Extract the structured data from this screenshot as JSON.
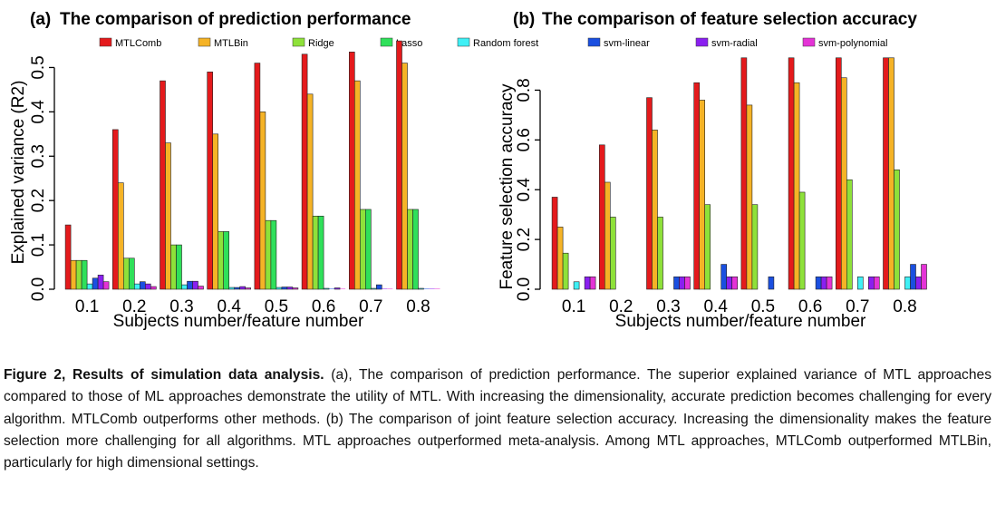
{
  "figure": {
    "caption_title": "Figure 2, Results of simulation data analysis.",
    "caption_body": " (a), The comparison of prediction performance. The superior explained variance of MTL approaches compared to those of ML approaches demonstrate the utility of MTL. With increasing the dimensionality, accurate prediction becomes challenging for every algorithm. MTLComb outperforms other methods. (b) The comparison of joint feature selection accuracy. Increasing the dimensionality makes the feature selection more challenging for all algorithms. MTL approaches outperformed meta-analysis. Among MTL approaches, MTLComb outperformed MTLBin, particularly for high dimensional settings."
  },
  "legend": [
    {
      "name": "MTLComb",
      "color": "#e41a1c"
    },
    {
      "name": "MTLBin",
      "color": "#f5b326"
    },
    {
      "name": "Ridge",
      "color": "#8ee13a"
    },
    {
      "name": "Lasso",
      "color": "#2fe05a"
    },
    {
      "name": "Random forest",
      "color": "#3ff0f5"
    },
    {
      "name": "svm-linear",
      "color": "#1a4fe0"
    },
    {
      "name": "svm-radial",
      "color": "#8a1ff0"
    },
    {
      "name": "svm-polynomial",
      "color": "#e433d6"
    }
  ],
  "chart_data": [
    {
      "type": "bar",
      "panel": "(a)",
      "title": "The comparison of prediction performance",
      "xlabel": "Subjects number/feature number",
      "ylabel": "Explained variance (R2)",
      "ylim": [
        0,
        0.55
      ],
      "yticks": [
        "0.0",
        "0.1",
        "0.2",
        "0.3",
        "0.4",
        "0.5"
      ],
      "yticks_values": [
        0,
        0.1,
        0.2,
        0.3,
        0.4,
        0.5
      ],
      "categories": [
        "0.1",
        "0.2",
        "0.3",
        "0.4",
        "0.5",
        "0.6",
        "0.7",
        "0.8"
      ],
      "series": [
        {
          "name": "MTLComb",
          "values": [
            0.145,
            0.36,
            0.47,
            0.49,
            0.51,
            0.53,
            0.535,
            0.56
          ]
        },
        {
          "name": "MTLBin",
          "values": [
            0.065,
            0.24,
            0.33,
            0.35,
            0.4,
            0.44,
            0.47,
            0.51
          ]
        },
        {
          "name": "Ridge",
          "values": [
            0.065,
            0.07,
            0.1,
            0.13,
            0.155,
            0.165,
            0.18,
            0.18
          ]
        },
        {
          "name": "Lasso",
          "values": [
            0.065,
            0.07,
            0.1,
            0.13,
            0.155,
            0.165,
            0.18,
            0.18
          ]
        },
        {
          "name": "Random forest",
          "values": [
            0.012,
            0.012,
            0.01,
            0.004,
            0.004,
            0.002,
            0.002,
            0.002
          ]
        },
        {
          "name": "svm-linear",
          "values": [
            0.025,
            0.017,
            0.018,
            0.004,
            0.005,
            0.001,
            0.01,
            0.001
          ]
        },
        {
          "name": "svm-radial",
          "values": [
            0.032,
            0.012,
            0.018,
            0.006,
            0.005,
            0.003,
            0.001,
            0.001
          ]
        },
        {
          "name": "svm-polynomial",
          "values": [
            0.017,
            0.006,
            0.007,
            0.003,
            0.003,
            0.001,
            0.001,
            0.001
          ]
        }
      ]
    },
    {
      "type": "bar",
      "panel": "(b)",
      "title": "The comparison of feature selection accuracy",
      "xlabel": "Subjects number/feature number",
      "ylabel": "Feature selection accuracy",
      "ylim": [
        0,
        0.9
      ],
      "yticks": [
        "0.0",
        "0.2",
        "0.4",
        "0.6",
        "0.8"
      ],
      "yticks_values": [
        0,
        0.2,
        0.4,
        0.6,
        0.8
      ],
      "categories": [
        "0.1",
        "0.2",
        "0.3",
        "0.4",
        "0.5",
        "0.6",
        "0.7",
        "0.8"
      ],
      "series": [
        {
          "name": "MTLComb",
          "values": [
            0.37,
            0.58,
            0.77,
            0.83,
            0.93,
            0.93,
            0.93,
            0.93
          ]
        },
        {
          "name": "MTLBin",
          "values": [
            0.25,
            0.43,
            0.64,
            0.76,
            0.74,
            0.83,
            0.85,
            0.93
          ]
        },
        {
          "name": "Ridge",
          "values": [
            0.145,
            0.29,
            0.29,
            0.34,
            0.34,
            0.39,
            0.44,
            0.48
          ]
        },
        {
          "name": "Lasso",
          "values": [
            0,
            0,
            0,
            0,
            0,
            0,
            0,
            0
          ]
        },
        {
          "name": "Random forest",
          "values": [
            0.03,
            0,
            0,
            0,
            0,
            0,
            0.05,
            0.05
          ]
        },
        {
          "name": "svm-linear",
          "values": [
            0,
            0,
            0.05,
            0.1,
            0.05,
            0.05,
            0,
            0.1
          ]
        },
        {
          "name": "svm-radial",
          "values": [
            0.05,
            0,
            0.05,
            0.05,
            0,
            0.05,
            0.05,
            0.05
          ]
        },
        {
          "name": "svm-polynomial",
          "values": [
            0.05,
            0,
            0.05,
            0.05,
            0,
            0.05,
            0.05,
            0.1
          ]
        }
      ]
    }
  ]
}
